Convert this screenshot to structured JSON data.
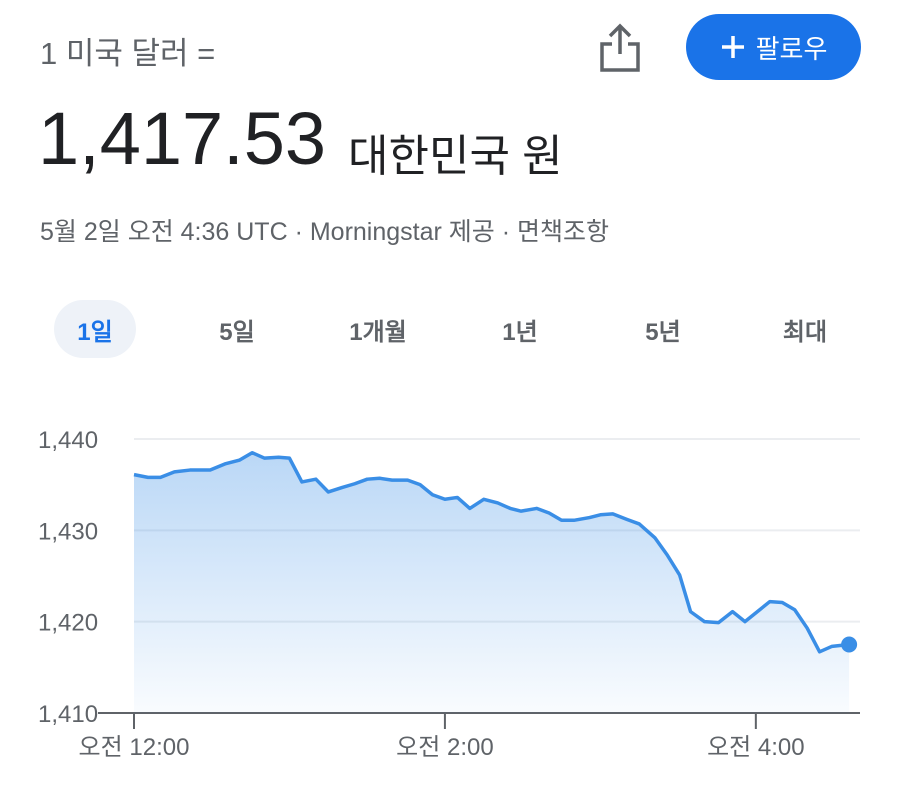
{
  "header": {
    "base": "1 미국 달러 =",
    "value": "1,417.53",
    "currency": "대한민국 원",
    "meta": "5월 2일 오전 4:36 UTC · Morningstar 제공 · 면책조항",
    "follow": "팔로우"
  },
  "tabs": {
    "items": [
      "1일",
      "5일",
      "1개월",
      "1년",
      "5년",
      "최대"
    ],
    "active": 0
  },
  "chart_data": {
    "type": "area",
    "color": "#3a8ee6",
    "x": [
      0,
      0.09,
      0.17,
      0.26,
      0.36,
      0.49,
      0.59,
      0.68,
      0.76,
      0.84,
      0.93,
      1.0,
      1.08,
      1.17,
      1.25,
      1.34,
      1.42,
      1.5,
      1.58,
      1.66,
      1.76,
      1.84,
      1.92,
      2.0,
      2.08,
      2.16,
      2.25,
      2.34,
      2.42,
      2.49,
      2.59,
      2.67,
      2.75,
      2.83,
      2.93,
      3.0,
      3.08,
      3.17,
      3.25,
      3.35,
      3.43,
      3.51,
      3.58,
      3.67,
      3.76,
      3.85,
      3.93,
      4.01,
      4.09,
      4.17,
      4.25,
      4.33,
      4.41,
      4.49,
      4.6
    ],
    "values": [
      1436.1,
      1435.8,
      1435.8,
      1436.4,
      1436.6,
      1436.6,
      1437.3,
      1437.7,
      1438.5,
      1437.9,
      1438.0,
      1437.9,
      1435.3,
      1435.6,
      1434.2,
      1434.7,
      1435.1,
      1435.6,
      1435.7,
      1435.5,
      1435.5,
      1435.0,
      1433.9,
      1433.4,
      1433.6,
      1432.4,
      1433.4,
      1433.0,
      1432.4,
      1432.1,
      1432.4,
      1431.9,
      1431.1,
      1431.1,
      1431.4,
      1431.7,
      1431.8,
      1431.2,
      1430.7,
      1429.2,
      1427.3,
      1425.1,
      1421.1,
      1420.0,
      1419.9,
      1421.1,
      1420.0,
      1421.1,
      1422.2,
      1422.1,
      1421.3,
      1419.3,
      1416.7,
      1417.3,
      1417.5
    ],
    "xlim": [
      0,
      4.67
    ],
    "xticks": [
      {
        "value": 0,
        "label": "오전 12:00"
      },
      {
        "value": 2,
        "label": "오전 2:00"
      },
      {
        "value": 4,
        "label": "오전 4:00"
      }
    ],
    "ylim": [
      1410,
      1440
    ],
    "yticks": [
      {
        "value": 1410,
        "label": "1,410"
      },
      {
        "value": 1420,
        "label": "1,420"
      },
      {
        "value": 1430,
        "label": "1,430"
      },
      {
        "value": 1440,
        "label": "1,440"
      }
    ],
    "grid": true
  }
}
